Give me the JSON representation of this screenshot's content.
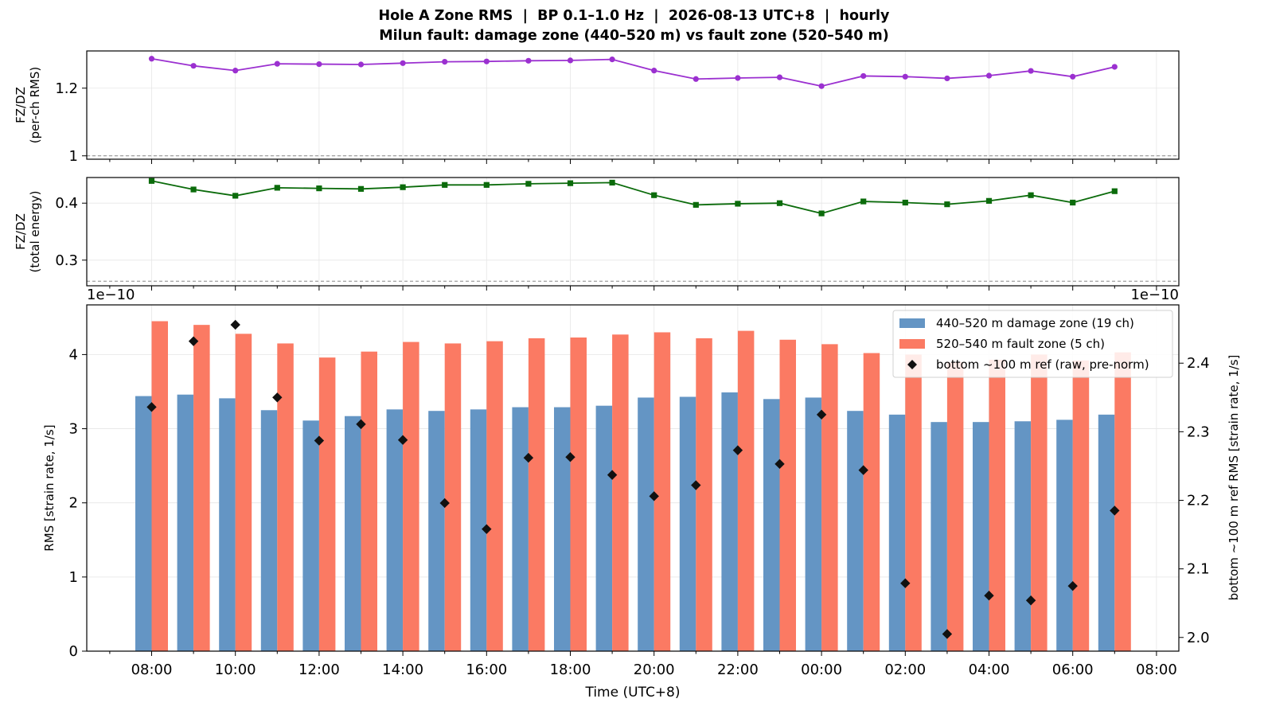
{
  "title": {
    "line1": "Hole A Zone RMS  |  BP 0.1–1.0 Hz  |  2026-08-13 UTC+8  |  hourly",
    "line2": "Milun fault: damage zone (440–520 m) vs fault zone (520–540 m)"
  },
  "x_axis": {
    "label": "Time (UTC+8)",
    "tick_labels": [
      "08:00",
      "10:00",
      "12:00",
      "14:00",
      "16:00",
      "18:00",
      "20:00",
      "22:00",
      "00:00",
      "02:00",
      "04:00",
      "06:00",
      "08:00"
    ]
  },
  "colors": {
    "damage_zone": "#6495c4",
    "fault_zone": "#fb7a63",
    "ratio_rms": "#9b30d0",
    "ratio_energy": "#0b6b0b",
    "reference": "#111111",
    "reference_line": "#888888"
  },
  "chart_data": [
    {
      "type": "line",
      "panel": "top",
      "ylabel": "FZ/DZ\n(per-ch RMS)",
      "ylim": [
        0.99,
        1.31
      ],
      "yticks": [
        1.0,
        1.2
      ],
      "reference_line": 1.0,
      "grid": true,
      "x": [
        "08:00",
        "09:00",
        "10:00",
        "11:00",
        "12:00",
        "13:00",
        "14:00",
        "15:00",
        "16:00",
        "17:00",
        "18:00",
        "19:00",
        "20:00",
        "21:00",
        "22:00",
        "23:00",
        "00:00",
        "01:00",
        "02:00",
        "03:00",
        "04:00",
        "05:00",
        "06:00",
        "07:00"
      ],
      "series": [
        {
          "values": [
            1.287,
            1.266,
            1.252,
            1.272,
            1.271,
            1.27,
            1.274,
            1.278,
            1.279,
            1.281,
            1.282,
            1.285,
            1.252,
            1.227,
            1.23,
            1.232,
            1.206,
            1.236,
            1.234,
            1.229,
            1.237,
            1.251,
            1.234,
            1.263
          ]
        }
      ]
    },
    {
      "type": "line",
      "panel": "middle",
      "ylabel": "FZ/DZ\n(total energy)",
      "ylim": [
        0.255,
        0.445
      ],
      "yticks": [
        0.3,
        0.4
      ],
      "reference_line": 0.263,
      "grid": true,
      "x": [
        "08:00",
        "09:00",
        "10:00",
        "11:00",
        "12:00",
        "13:00",
        "14:00",
        "15:00",
        "16:00",
        "17:00",
        "18:00",
        "19:00",
        "20:00",
        "21:00",
        "22:00",
        "23:00",
        "00:00",
        "01:00",
        "02:00",
        "03:00",
        "04:00",
        "05:00",
        "06:00",
        "07:00"
      ],
      "series": [
        {
          "values": [
            0.439,
            0.424,
            0.413,
            0.427,
            0.426,
            0.425,
            0.428,
            0.432,
            0.432,
            0.434,
            0.435,
            0.436,
            0.414,
            0.397,
            0.399,
            0.4,
            0.382,
            0.403,
            0.401,
            0.398,
            0.404,
            0.414,
            0.401,
            0.421
          ]
        }
      ]
    },
    {
      "type": "bar",
      "panel": "bottom",
      "ylabel": "RMS  [strain rate, 1/s]",
      "ylabel_right": "bottom ~100 m ref RMS  [strain rate, 1/s]",
      "offset_left": "1e−10",
      "offset_right": "1e−10",
      "ylim": [
        0,
        4.67
      ],
      "yticks": [
        0,
        1,
        2,
        3,
        4
      ],
      "ylim_right": [
        1.98,
        2.485
      ],
      "yticks_right": [
        2.0,
        2.1,
        2.2,
        2.3,
        2.4
      ],
      "legend": "top-right",
      "grid": true,
      "categories": [
        "08:00",
        "09:00",
        "10:00",
        "11:00",
        "12:00",
        "13:00",
        "14:00",
        "15:00",
        "16:00",
        "17:00",
        "18:00",
        "19:00",
        "20:00",
        "21:00",
        "22:00",
        "23:00",
        "00:00",
        "01:00",
        "02:00",
        "03:00",
        "04:00",
        "05:00",
        "06:00",
        "07:00"
      ],
      "series": [
        {
          "name": "440–520 m  damage zone (19 ch)",
          "values": [
            3.44,
            3.46,
            3.41,
            3.25,
            3.11,
            3.17,
            3.26,
            3.24,
            3.26,
            3.29,
            3.29,
            3.31,
            3.42,
            3.43,
            3.49,
            3.4,
            3.42,
            3.24,
            3.19,
            3.09,
            3.09,
            3.1,
            3.12,
            3.19
          ]
        },
        {
          "name": "520–540 m  fault zone (5 ch)",
          "values": [
            4.45,
            4.4,
            4.28,
            4.15,
            3.96,
            4.04,
            4.17,
            4.15,
            4.18,
            4.22,
            4.23,
            4.27,
            4.3,
            4.22,
            4.32,
            4.2,
            4.14,
            4.02,
            4.0,
            3.9,
            3.93,
            4.0,
            3.92,
            4.03
          ]
        },
        {
          "name": "bottom ~100 m ref (raw, pre-norm)",
          "axis": "right",
          "values": [
            2.336,
            2.432,
            2.456,
            2.35,
            2.287,
            2.311,
            2.288,
            2.196,
            2.158,
            2.262,
            2.263,
            2.237,
            2.206,
            2.222,
            2.273,
            2.253,
            2.325,
            2.244,
            2.079,
            2.005,
            2.061,
            2.054,
            2.075,
            2.185
          ]
        }
      ]
    }
  ]
}
